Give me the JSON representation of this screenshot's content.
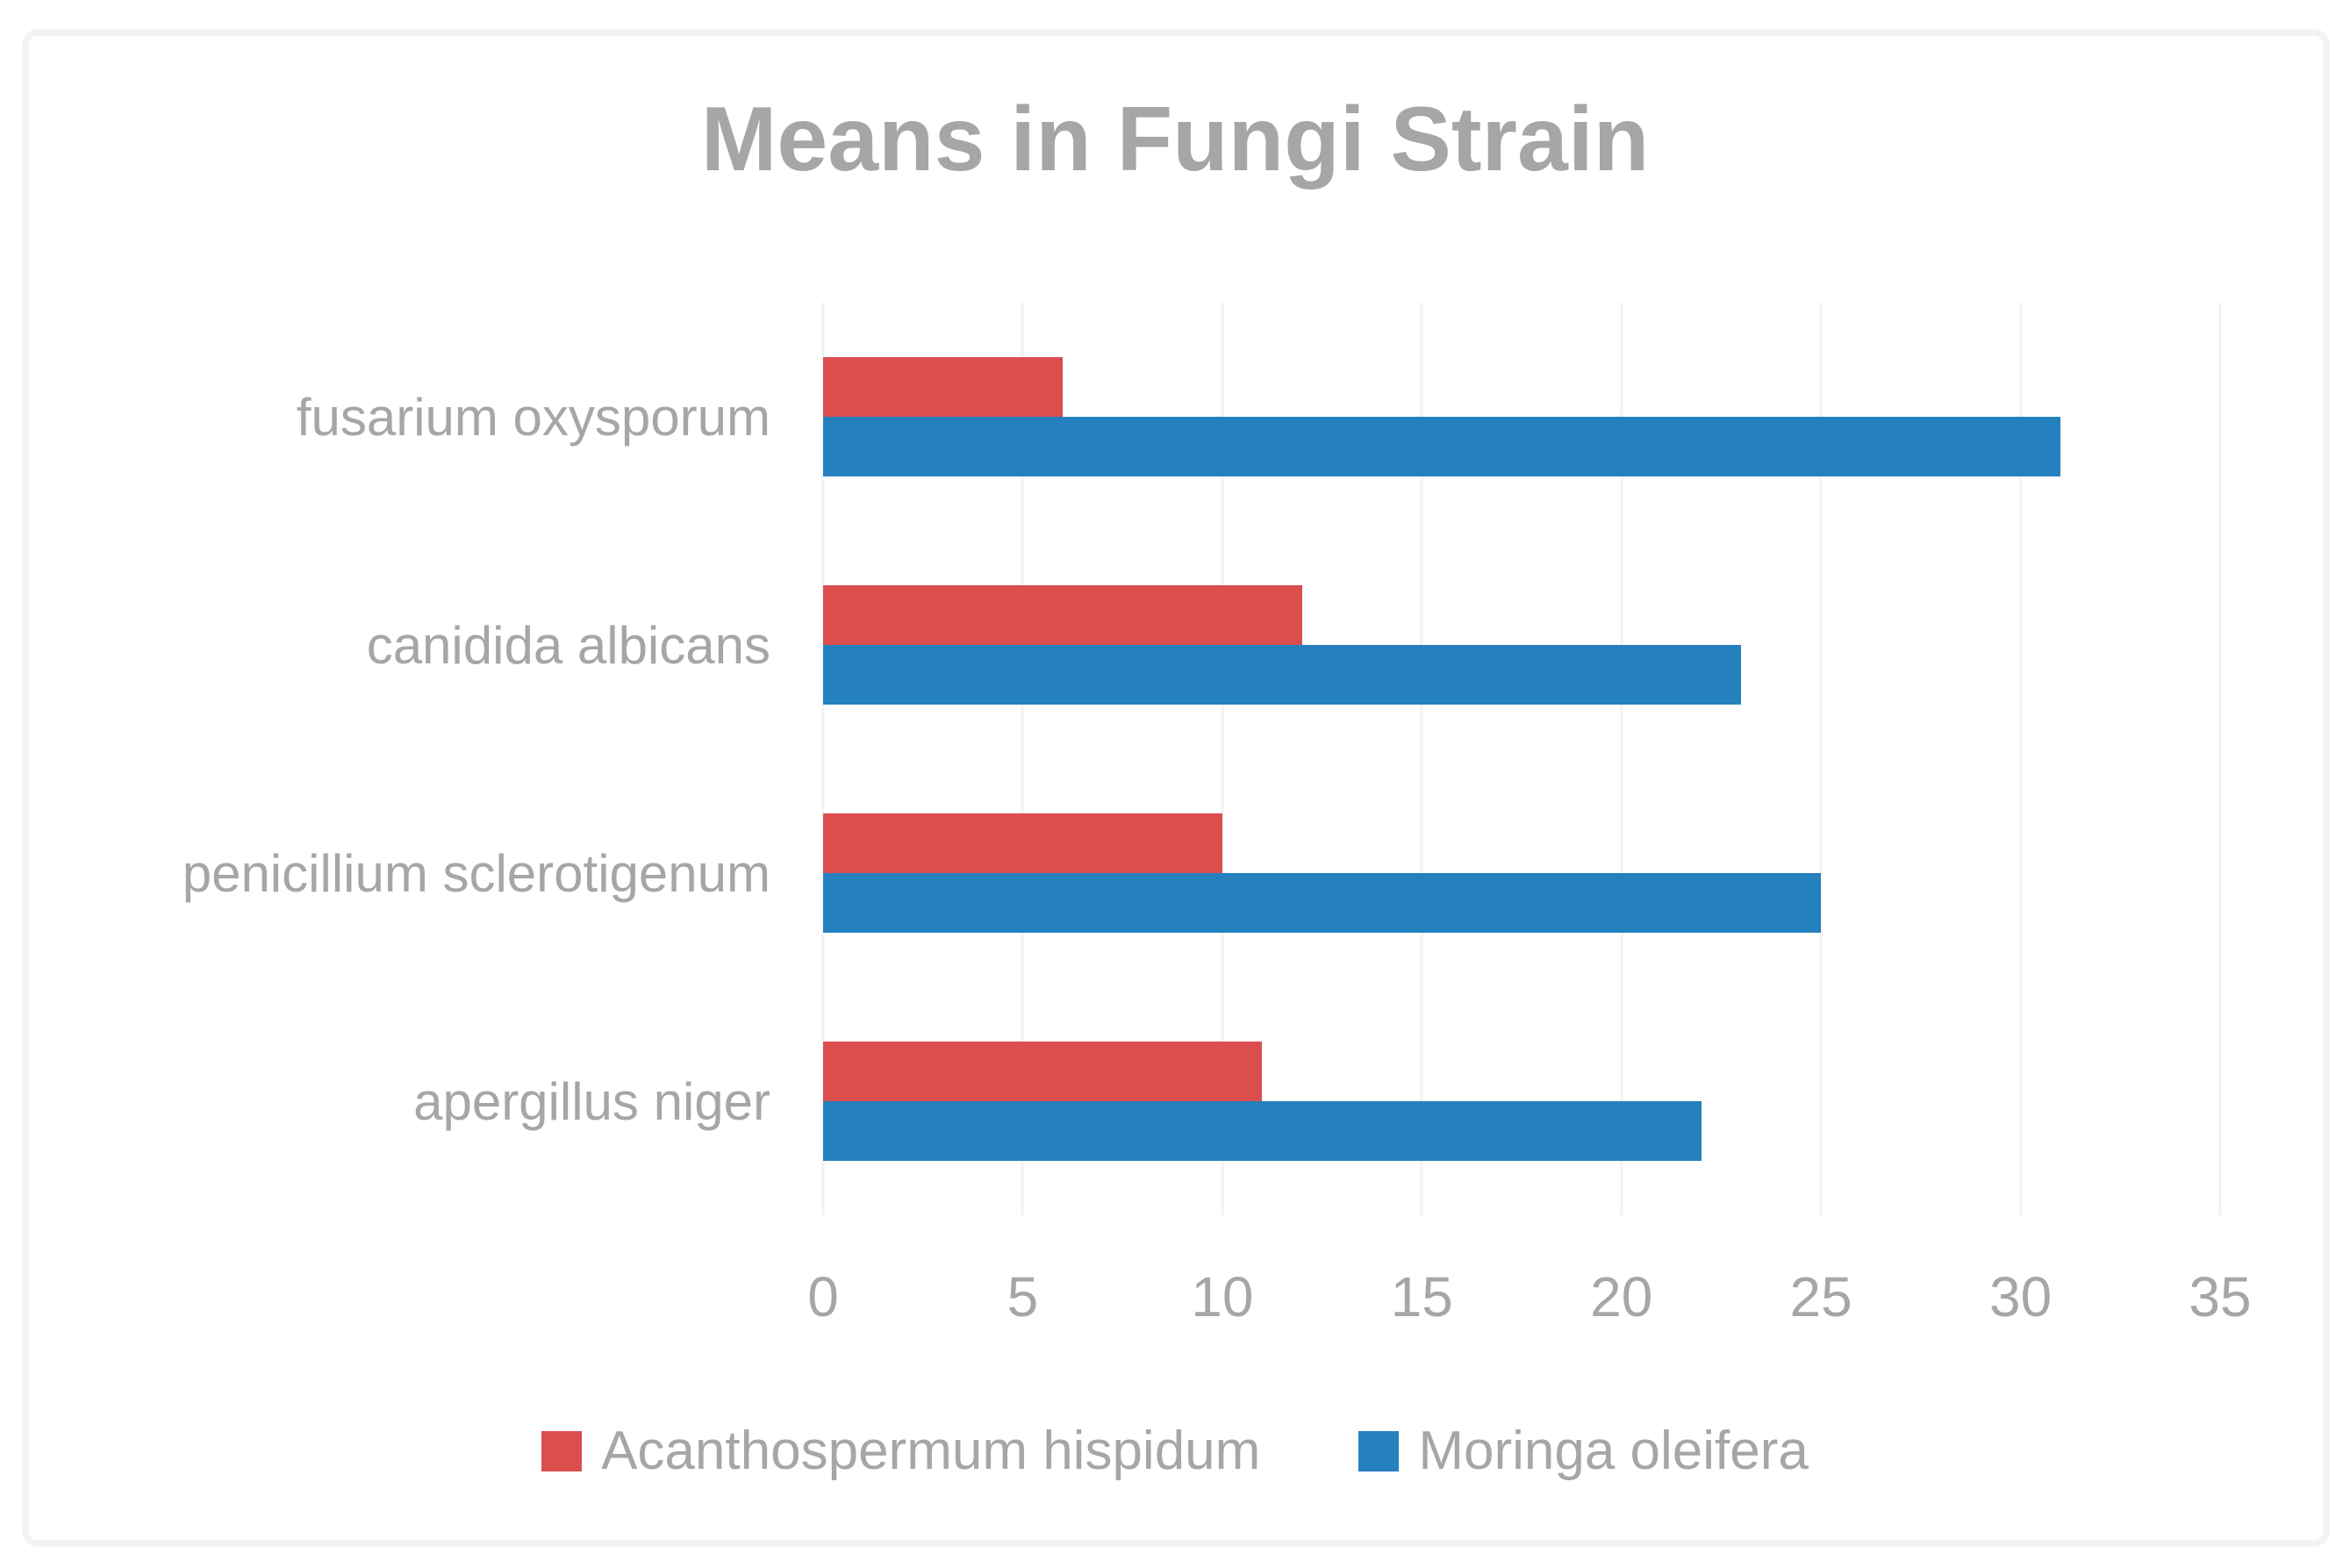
{
  "title": "Means in Fungi Strain",
  "colors": {
    "series_red": "#DB4E4E",
    "series_blue": "#2580BE",
    "text_gray": "#A6A6A6",
    "gridline": "#F2F2F2",
    "frame_border": "#F3F3F3"
  },
  "chart_data": {
    "type": "bar",
    "orientation": "horizontal",
    "title": "Means in Fungi Strain",
    "categories": [
      "fusarium oxysporum",
      "canidida albicans",
      "penicillium sclerotigenum",
      "apergillus niger"
    ],
    "series": [
      {
        "name": "Acanthospermum hispidum",
        "color": "#DB4E4E",
        "values": [
          6,
          12,
          10,
          11
        ]
      },
      {
        "name": "Moringa oleifera",
        "color": "#2580BE",
        "values": [
          31,
          23,
          25,
          22
        ]
      }
    ],
    "xlabel": "",
    "ylabel": "",
    "xlim": [
      0,
      35
    ],
    "xticks": [
      0,
      5,
      10,
      15,
      20,
      25,
      30,
      35
    ],
    "grid": true,
    "legend_position": "bottom"
  }
}
